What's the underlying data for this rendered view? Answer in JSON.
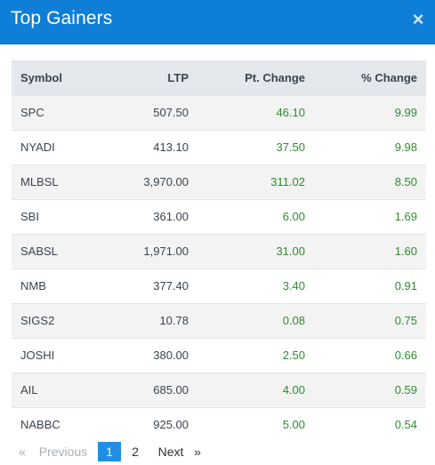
{
  "modal": {
    "title": "Top Gainers",
    "close_label": "×"
  },
  "table": {
    "headers": {
      "symbol": "Symbol",
      "ltp": "LTP",
      "pt_change": "Pt. Change",
      "pct_change": "% Change"
    },
    "rows": [
      {
        "symbol": "SPC",
        "ltp": "507.50",
        "pt_change": "46.10",
        "pct_change": "9.99"
      },
      {
        "symbol": "NYADI",
        "ltp": "413.10",
        "pt_change": "37.50",
        "pct_change": "9.98"
      },
      {
        "symbol": "MLBSL",
        "ltp": "3,970.00",
        "pt_change": "311.02",
        "pct_change": "8.50"
      },
      {
        "symbol": "SBI",
        "ltp": "361.00",
        "pt_change": "6.00",
        "pct_change": "1.69"
      },
      {
        "symbol": "SABSL",
        "ltp": "1,971.00",
        "pt_change": "31.00",
        "pct_change": "1.60"
      },
      {
        "symbol": "NMB",
        "ltp": "377.40",
        "pt_change": "3.40",
        "pct_change": "0.91"
      },
      {
        "symbol": "SIGS2",
        "ltp": "10.78",
        "pt_change": "0.08",
        "pct_change": "0.75"
      },
      {
        "symbol": "JOSHI",
        "ltp": "380.00",
        "pt_change": "2.50",
        "pct_change": "0.66"
      },
      {
        "symbol": "AIL",
        "ltp": "685.00",
        "pt_change": "4.00",
        "pct_change": "0.59"
      },
      {
        "symbol": "NABBC",
        "ltp": "925.00",
        "pt_change": "5.00",
        "pct_change": "0.54"
      }
    ]
  },
  "pagination": {
    "first": "«",
    "previous": "Previous",
    "page1": "1",
    "page2": "2",
    "next": "Next",
    "last": "»"
  },
  "colors": {
    "header_bg": "#0f7ed6",
    "positive": "#2e8b2e",
    "active_page": "#1f8fe5"
  }
}
